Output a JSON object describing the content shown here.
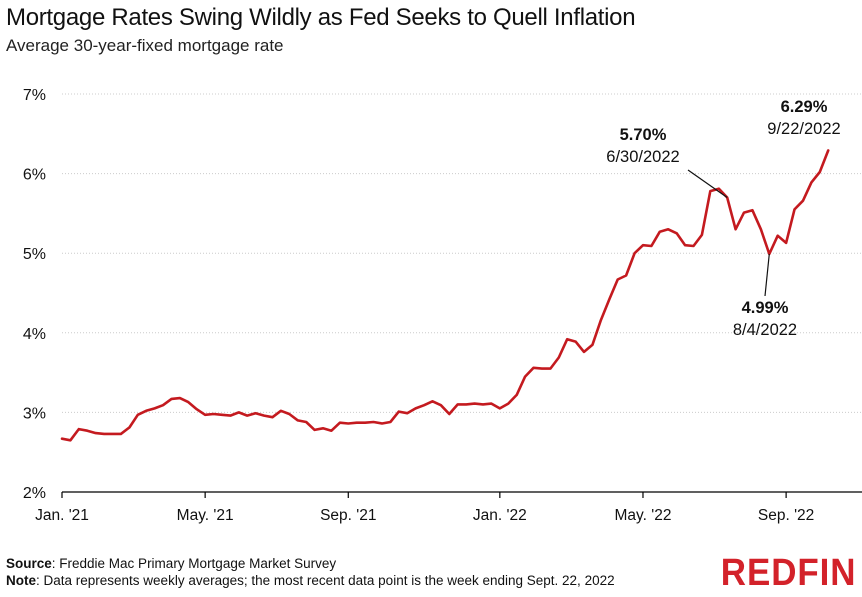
{
  "header": {
    "title": "Mortgage Rates Swing Wildly as Fed Seeks to Quell Inflation",
    "subtitle": "Average 30-year-fixed mortgage rate"
  },
  "footer": {
    "source_label": "Source",
    "source_text": ": Freddie Mac Primary Mortgage Market Survey",
    "note_label": "Note",
    "note_text": ": Data represents weekly averages; the most recent data point is the week ending Sept. 22, 2022"
  },
  "brand": {
    "logo_text": "REDFIN",
    "color": "#d3222a"
  },
  "colors": {
    "line": "#c41a1f",
    "axis": "#000000",
    "grid": "#cccccc"
  },
  "chart_data": {
    "type": "line",
    "title": "Mortgage Rates Swing Wildly as Fed Seeks to Quell Inflation",
    "subtitle": "Average 30-year-fixed mortgage rate",
    "xlabel": "",
    "ylabel": "",
    "ylim": [
      2,
      7
    ],
    "yticks": [
      2,
      3,
      4,
      5,
      6,
      7
    ],
    "ytick_labels": [
      "2%",
      "3%",
      "4%",
      "5%",
      "6%",
      "7%"
    ],
    "xtick_labels": [
      "Jan. '21",
      "May. '21",
      "Sep. '21",
      "Jan. '22",
      "May. '22",
      "Sep. '22"
    ],
    "xtick_weeks": [
      0,
      17,
      34,
      52,
      69,
      86
    ],
    "grid": true,
    "series": [
      {
        "values": [
          2.67,
          2.65,
          2.79,
          2.77,
          2.74,
          2.73,
          2.73,
          2.73,
          2.81,
          2.97,
          3.02,
          3.05,
          3.09,
          3.17,
          3.18,
          3.13,
          3.04,
          2.97,
          2.98,
          2.97,
          2.96,
          3.0,
          2.96,
          2.99,
          2.96,
          2.94,
          3.02,
          2.98,
          2.9,
          2.88,
          2.78,
          2.8,
          2.77,
          2.87,
          2.86,
          2.87,
          2.87,
          2.88,
          2.86,
          2.88,
          3.01,
          2.99,
          3.05,
          3.09,
          3.14,
          3.09,
          2.98,
          3.1,
          3.1,
          3.11,
          3.1,
          3.11,
          3.05,
          3.11,
          3.22,
          3.45,
          3.56,
          3.55,
          3.55,
          3.69,
          3.92,
          3.89,
          3.76,
          3.85,
          4.16,
          4.42,
          4.67,
          4.72,
          5.0,
          5.1,
          5.09,
          5.27,
          5.3,
          5.25,
          5.1,
          5.09,
          5.23,
          5.78,
          5.81,
          5.7,
          5.3,
          5.51,
          5.54,
          5.3,
          4.99,
          5.22,
          5.13,
          5.55,
          5.66,
          5.89,
          6.02,
          6.29
        ]
      }
    ],
    "annotations": [
      {
        "week": 79,
        "value": 5.7,
        "pct": "5.70%",
        "date": "6/30/2022"
      },
      {
        "week": 84,
        "value": 4.99,
        "pct": "4.99%",
        "date": "8/4/2022"
      },
      {
        "week": 91,
        "value": 6.29,
        "pct": "6.29%",
        "date": "9/22/2022"
      }
    ]
  }
}
